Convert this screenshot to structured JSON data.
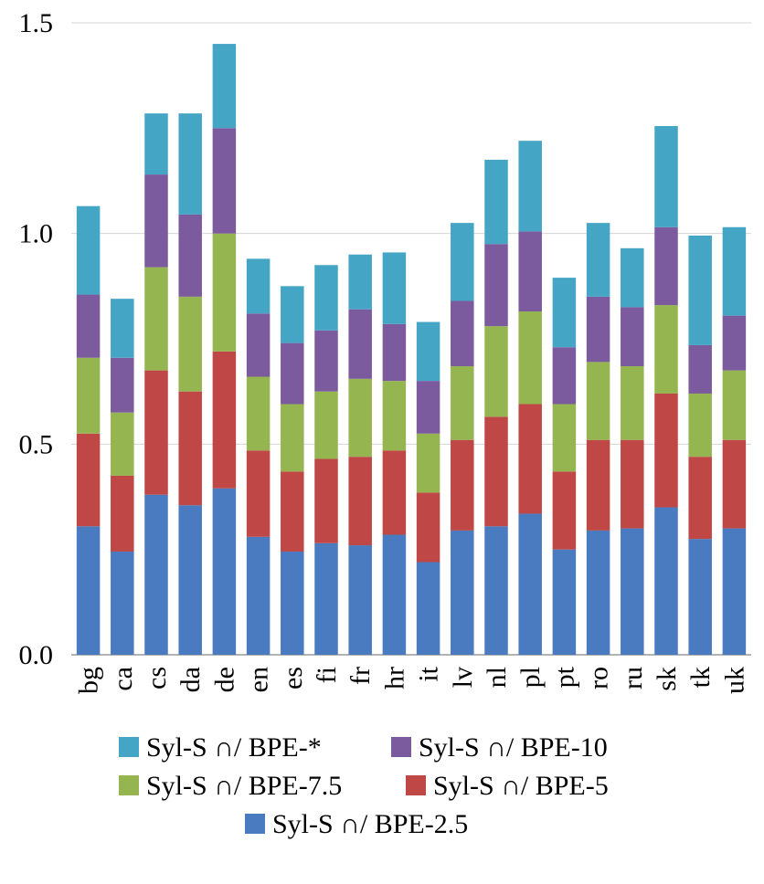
{
  "chart_data": {
    "type": "bar",
    "stacked": true,
    "title": "",
    "xlabel": "",
    "ylabel": "",
    "ylim": [
      0,
      1.5
    ],
    "yticks": [
      "0.0",
      "0.5",
      "1.0",
      "1.5"
    ],
    "ytick_values": [
      0,
      0.5,
      1.0,
      1.5
    ],
    "grid": true,
    "legend_position": "bottom",
    "categories": [
      "bg",
      "ca",
      "cs",
      "da",
      "de",
      "en",
      "es",
      "fi",
      "fr",
      "hr",
      "it",
      "lv",
      "nl",
      "pl",
      "pt",
      "ro",
      "ru",
      "sk",
      "tk",
      "uk"
    ],
    "series": [
      {
        "name": "Syl-S ∩/ BPE-2.5",
        "color": "#4a7abf",
        "values": [
          0.305,
          0.245,
          0.38,
          0.355,
          0.395,
          0.28,
          0.245,
          0.265,
          0.26,
          0.285,
          0.22,
          0.295,
          0.305,
          0.335,
          0.25,
          0.295,
          0.3,
          0.35,
          0.275,
          0.3
        ]
      },
      {
        "name": "Syl-S ∩/ BPE-5",
        "color": "#bf4745",
        "values": [
          0.22,
          0.18,
          0.295,
          0.27,
          0.325,
          0.205,
          0.19,
          0.2,
          0.21,
          0.2,
          0.165,
          0.215,
          0.26,
          0.26,
          0.185,
          0.215,
          0.21,
          0.27,
          0.195,
          0.21
        ]
      },
      {
        "name": "Syl-S ∩/ BPE-7.5",
        "color": "#94b550",
        "values": [
          0.18,
          0.15,
          0.245,
          0.225,
          0.28,
          0.175,
          0.16,
          0.16,
          0.185,
          0.165,
          0.14,
          0.175,
          0.215,
          0.22,
          0.16,
          0.185,
          0.175,
          0.21,
          0.15,
          0.165
        ]
      },
      {
        "name": "Syl-S ∩/ BPE-10",
        "color": "#7b5a9e",
        "values": [
          0.15,
          0.13,
          0.22,
          0.195,
          0.25,
          0.15,
          0.145,
          0.145,
          0.165,
          0.135,
          0.125,
          0.155,
          0.195,
          0.19,
          0.135,
          0.155,
          0.14,
          0.185,
          0.115,
          0.13
        ]
      },
      {
        "name": "Syl-S ∩/ BPE-*",
        "color": "#45a5c5",
        "values": [
          0.21,
          0.14,
          0.145,
          0.24,
          0.2,
          0.13,
          0.135,
          0.155,
          0.13,
          0.17,
          0.14,
          0.185,
          0.2,
          0.215,
          0.165,
          0.175,
          0.14,
          0.24,
          0.26,
          0.21
        ]
      }
    ],
    "legend_order": [
      4,
      3,
      2,
      1,
      0
    ]
  }
}
